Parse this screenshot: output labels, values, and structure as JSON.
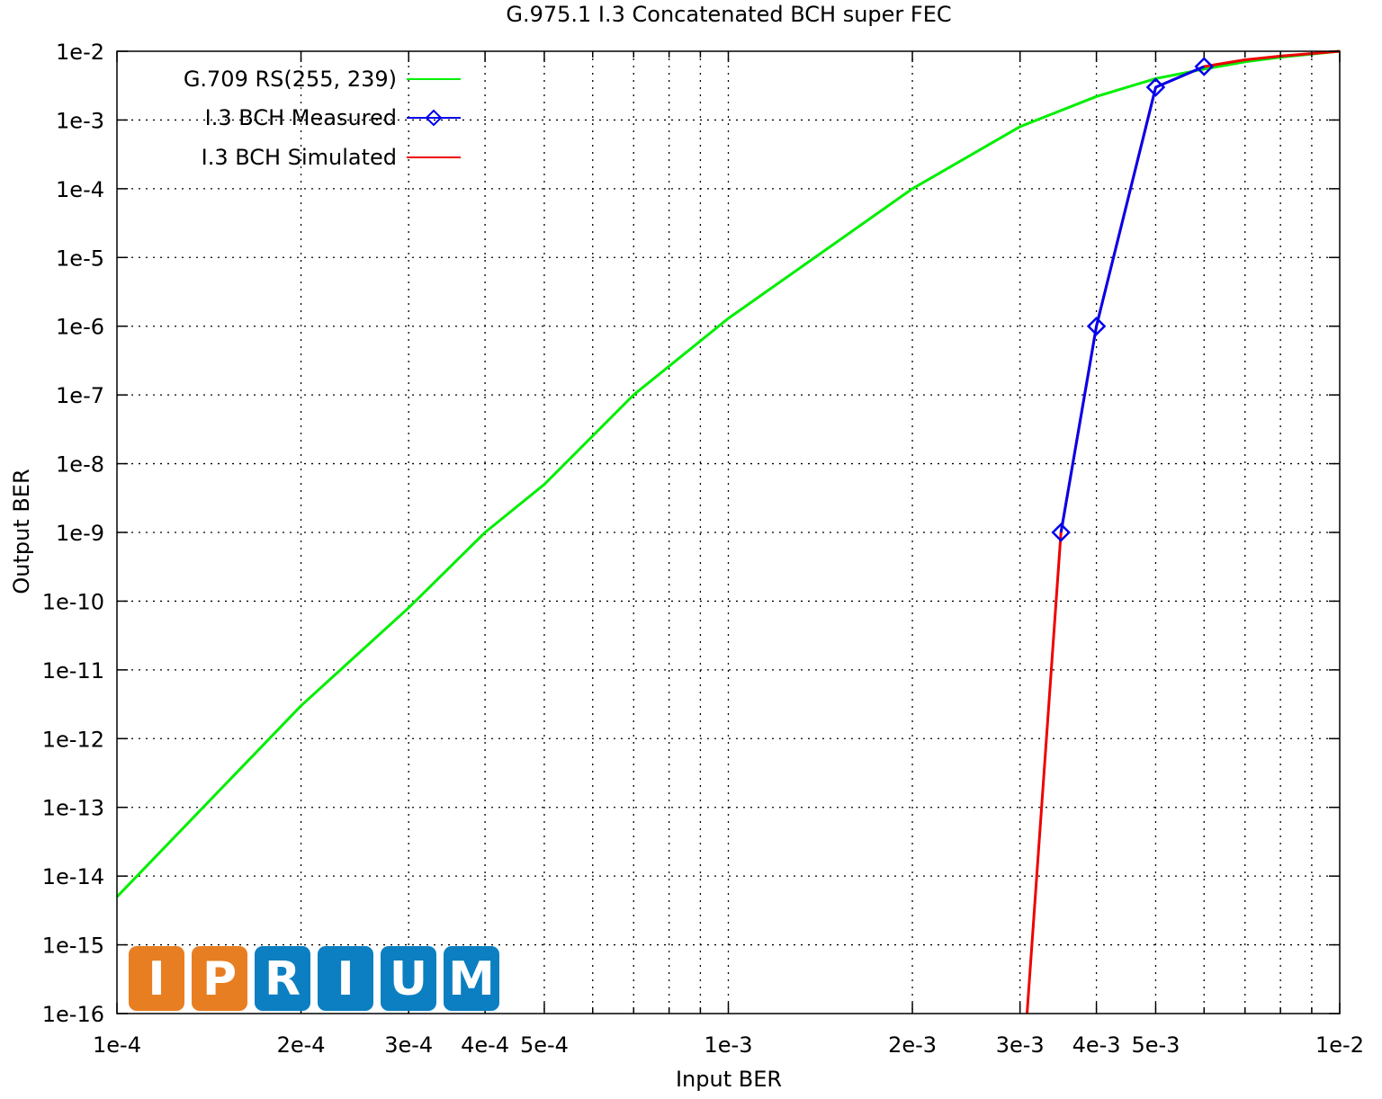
{
  "chart_data": {
    "type": "line",
    "title": "G.975.1 I.3 Concatenated BCH super FEC",
    "xlabel": "Input BER",
    "ylabel": "Output BER",
    "x_scale": "log",
    "y_scale": "log",
    "xlim": [
      0.0001,
      0.01
    ],
    "ylim": [
      1e-16,
      0.01
    ],
    "grid": true,
    "legend_position": "top-left",
    "x_ticks": [
      {
        "value": 0.0001,
        "label": "1e-4"
      },
      {
        "value": 0.0002,
        "label": "2e-4"
      },
      {
        "value": 0.0003,
        "label": "3e-4"
      },
      {
        "value": 0.0004,
        "label": "4e-4"
      },
      {
        "value": 0.0005,
        "label": "5e-4"
      },
      {
        "value": 0.001,
        "label": "1e-3"
      },
      {
        "value": 0.002,
        "label": "2e-3"
      },
      {
        "value": 0.003,
        "label": "3e-3"
      },
      {
        "value": 0.004,
        "label": "4e-3"
      },
      {
        "value": 0.005,
        "label": "5e-3"
      },
      {
        "value": 0.01,
        "label": "1e-2"
      }
    ],
    "x_minor_gridlines": [
      0.0006,
      0.0007,
      0.0008,
      0.0009,
      0.006,
      0.007,
      0.008,
      0.009
    ],
    "y_ticks": [
      {
        "value": 0.01,
        "label": "1e-2"
      },
      {
        "value": 0.001,
        "label": "1e-3"
      },
      {
        "value": 0.0001,
        "label": "1e-4"
      },
      {
        "value": 1e-05,
        "label": "1e-5"
      },
      {
        "value": 1e-06,
        "label": "1e-6"
      },
      {
        "value": 1e-07,
        "label": "1e-7"
      },
      {
        "value": 1e-08,
        "label": "1e-8"
      },
      {
        "value": 1e-09,
        "label": "1e-9"
      },
      {
        "value": 1e-10,
        "label": "1e-10"
      },
      {
        "value": 1e-11,
        "label": "1e-11"
      },
      {
        "value": 1e-12,
        "label": "1e-12"
      },
      {
        "value": 1e-13,
        "label": "1e-13"
      },
      {
        "value": 1e-14,
        "label": "1e-14"
      },
      {
        "value": 1e-15,
        "label": "1e-15"
      },
      {
        "value": 1e-16,
        "label": "1e-16"
      }
    ],
    "series": [
      {
        "name": "G.709 RS(255, 239)",
        "color": "#00ee00",
        "marker": "none",
        "x": [
          0.0001,
          0.0002,
          0.0003,
          0.0004,
          0.0005,
          0.0007,
          0.001,
          0.002,
          0.003,
          0.004,
          0.005,
          0.006,
          0.007,
          0.008,
          0.01
        ],
        "y": [
          5e-15,
          3e-12,
          8e-11,
          1e-09,
          5e-09,
          1e-07,
          1.3e-06,
          0.0001,
          0.0008,
          0.0022,
          0.004,
          0.0055,
          0.007,
          0.0082,
          0.01
        ]
      },
      {
        "name": "I.3 BCH Measured",
        "color": "#0000ee",
        "marker": "diamond",
        "x": [
          0.0035,
          0.004,
          0.005,
          0.006
        ],
        "y": [
          1e-09,
          1e-06,
          0.003,
          0.006
        ]
      },
      {
        "name": "I.3 BCH Simulated",
        "color": "#ee0000",
        "marker": "none",
        "x": [
          0.00308,
          0.0035,
          0.004,
          0.005,
          0.006,
          0.007,
          0.008,
          0.01
        ],
        "y": [
          1e-16,
          1e-09,
          1e-06,
          0.003,
          0.006,
          0.0075,
          0.0085,
          0.01
        ]
      }
    ]
  },
  "logo": {
    "letters": [
      "I",
      "P",
      "R",
      "I",
      "U",
      "M"
    ],
    "colors": [
      "#e87e22",
      "#e87e22",
      "#0b7fc1",
      "#0b7fc1",
      "#0b7fc1",
      "#0b7fc1"
    ]
  }
}
